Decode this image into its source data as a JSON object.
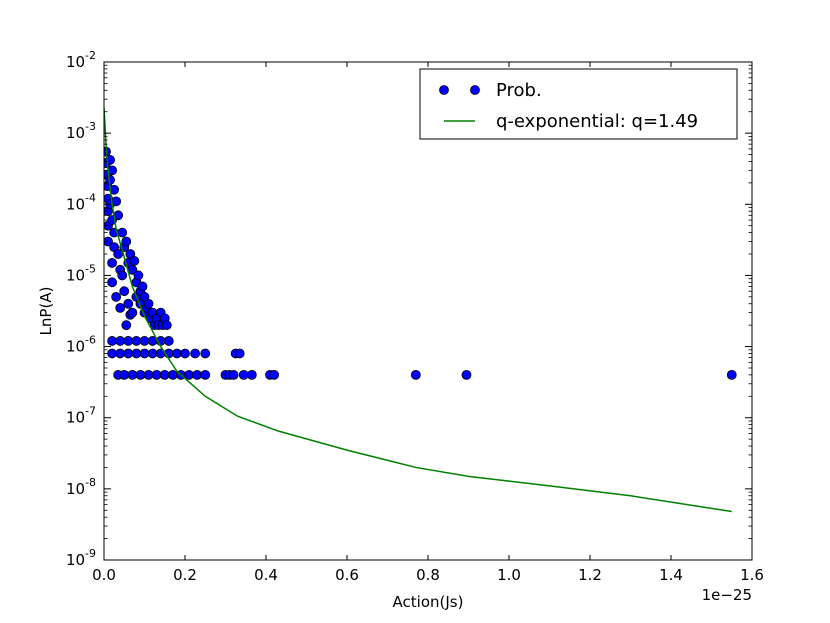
{
  "chart_data": {
    "type": "scatter",
    "title": "",
    "xlabel": "Action(Js)",
    "ylabel": "LnP(A)",
    "x_offset_label": "1e−25",
    "xlim": [
      0.0,
      1.6
    ],
    "ylim": [
      1e-09,
      0.01
    ],
    "yscale": "log",
    "xticks": [
      "0.0",
      "0.2",
      "0.4",
      "0.6",
      "0.8",
      "1.0",
      "1.2",
      "1.4",
      "1.6"
    ],
    "yticks": [
      {
        "base": "10",
        "exp": "-9"
      },
      {
        "base": "10",
        "exp": "-8"
      },
      {
        "base": "10",
        "exp": "-7"
      },
      {
        "base": "10",
        "exp": "-6"
      },
      {
        "base": "10",
        "exp": "-5"
      },
      {
        "base": "10",
        "exp": "-4"
      },
      {
        "base": "10",
        "exp": "-3"
      },
      {
        "base": "10",
        "exp": "-2"
      }
    ],
    "legend_position": "top-right",
    "series": [
      {
        "name": "Prob.",
        "kind": "scatter",
        "color": "#0000ff",
        "edge_color": "#000000",
        "points": [
          [
            0.005,
            0.00055
          ],
          [
            0.005,
            0.00038
          ],
          [
            0.008,
            0.00026
          ],
          [
            0.008,
            0.00018
          ],
          [
            0.01,
            0.00012
          ],
          [
            0.01,
            8e-05
          ],
          [
            0.01,
            5e-05
          ],
          [
            0.01,
            3e-05
          ],
          [
            0.015,
            0.00042
          ],
          [
            0.015,
            0.00022
          ],
          [
            0.015,
            0.0001
          ],
          [
            0.02,
            0.0003
          ],
          [
            0.02,
            6e-05
          ],
          [
            0.02,
            1.5e-05
          ],
          [
            0.02,
            8e-06
          ],
          [
            0.025,
            0.00016
          ],
          [
            0.025,
            4e-05
          ],
          [
            0.025,
            2.5e-05
          ],
          [
            0.03,
            0.00011
          ],
          [
            0.03,
            5e-06
          ],
          [
            0.035,
            7e-05
          ],
          [
            0.035,
            2e-05
          ],
          [
            0.04,
            1.2e-05
          ],
          [
            0.04,
            3.5e-06
          ],
          [
            0.045,
            4e-05
          ],
          [
            0.045,
            1e-05
          ],
          [
            0.05,
            2.5e-05
          ],
          [
            0.05,
            6e-06
          ],
          [
            0.055,
            3e-05
          ],
          [
            0.055,
            2e-06
          ],
          [
            0.06,
            1.5e-05
          ],
          [
            0.06,
            4e-06
          ],
          [
            0.065,
            2e-05
          ],
          [
            0.065,
            2.8e-06
          ],
          [
            0.07,
            1.2e-05
          ],
          [
            0.07,
            3e-06
          ],
          [
            0.075,
            1.6e-05
          ],
          [
            0.08,
            8e-06
          ],
          [
            0.08,
            5e-06
          ],
          [
            0.085,
            1e-05
          ],
          [
            0.09,
            6e-06
          ],
          [
            0.09,
            4e-06
          ],
          [
            0.095,
            7e-06
          ],
          [
            0.1,
            5e-06
          ],
          [
            0.1,
            3e-06
          ],
          [
            0.105,
            3.5e-06
          ],
          [
            0.11,
            4e-06
          ],
          [
            0.115,
            2.5e-06
          ],
          [
            0.12,
            3e-06
          ],
          [
            0.125,
            2e-06
          ],
          [
            0.13,
            2.5e-06
          ],
          [
            0.135,
            2e-06
          ],
          [
            0.14,
            3e-06
          ],
          [
            0.145,
            2e-06
          ],
          [
            0.15,
            2.5e-06
          ],
          [
            0.155,
            2e-06
          ],
          [
            0.02,
            1.2e-06
          ],
          [
            0.04,
            1.2e-06
          ],
          [
            0.06,
            1.2e-06
          ],
          [
            0.08,
            1.2e-06
          ],
          [
            0.1,
            1.2e-06
          ],
          [
            0.12,
            1.2e-06
          ],
          [
            0.14,
            1.2e-06
          ],
          [
            0.16,
            1.2e-06
          ],
          [
            0.02,
            8e-07
          ],
          [
            0.04,
            8e-07
          ],
          [
            0.06,
            8e-07
          ],
          [
            0.08,
            8e-07
          ],
          [
            0.1,
            8e-07
          ],
          [
            0.12,
            8e-07
          ],
          [
            0.14,
            8e-07
          ],
          [
            0.16,
            8e-07
          ],
          [
            0.18,
            8e-07
          ],
          [
            0.2,
            8e-07
          ],
          [
            0.225,
            8e-07
          ],
          [
            0.25,
            8e-07
          ],
          [
            0.325,
            8e-07
          ],
          [
            0.335,
            8e-07
          ],
          [
            0.035,
            4e-07
          ],
          [
            0.05,
            4e-07
          ],
          [
            0.07,
            4e-07
          ],
          [
            0.09,
            4e-07
          ],
          [
            0.11,
            4e-07
          ],
          [
            0.13,
            4e-07
          ],
          [
            0.15,
            4e-07
          ],
          [
            0.17,
            4e-07
          ],
          [
            0.19,
            4e-07
          ],
          [
            0.21,
            4e-07
          ],
          [
            0.23,
            4e-07
          ],
          [
            0.25,
            4e-07
          ],
          [
            0.3,
            4e-07
          ],
          [
            0.31,
            4e-07
          ],
          [
            0.32,
            4e-07
          ],
          [
            0.345,
            4e-07
          ],
          [
            0.365,
            4e-07
          ],
          [
            0.41,
            4e-07
          ],
          [
            0.42,
            4e-07
          ],
          [
            0.77,
            4e-07
          ],
          [
            0.895,
            4e-07
          ],
          [
            1.55,
            4e-07
          ]
        ]
      },
      {
        "name": "q-exponential: q=1.49",
        "kind": "line",
        "color": "#008000",
        "points": [
          [
            0.0,
            0.0023
          ],
          [
            0.005,
            0.0007
          ],
          [
            0.01,
            0.0003
          ],
          [
            0.02,
            0.0001
          ],
          [
            0.03,
            4.5e-05
          ],
          [
            0.05,
            1.8e-05
          ],
          [
            0.07,
            7e-06
          ],
          [
            0.1,
            2.7e-06
          ],
          [
            0.14,
            1e-06
          ],
          [
            0.18,
            4.5e-07
          ],
          [
            0.25,
            2e-07
          ],
          [
            0.33,
            1.05e-07
          ],
          [
            0.43,
            6.5e-08
          ],
          [
            0.6,
            3.5e-08
          ],
          [
            0.77,
            2e-08
          ],
          [
            0.9,
            1.5e-08
          ],
          [
            1.1,
            1.1e-08
          ],
          [
            1.3,
            8e-09
          ],
          [
            1.55,
            4.8e-09
          ]
        ]
      }
    ]
  }
}
